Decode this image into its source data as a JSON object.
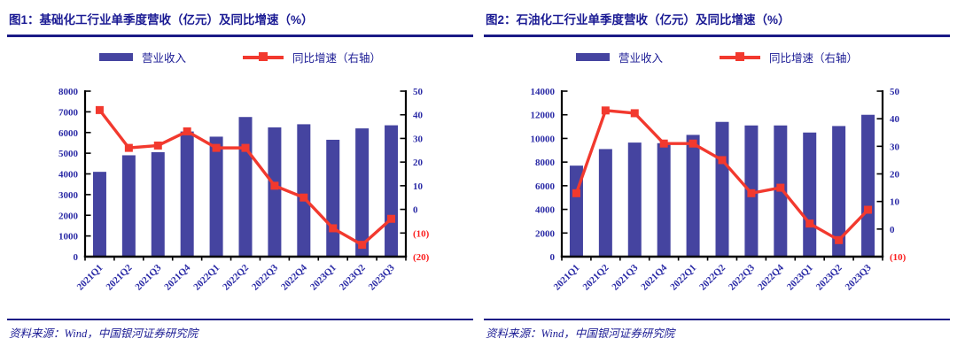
{
  "page": {
    "background": "#ffffff"
  },
  "colors": {
    "bar": "#4544A0",
    "line": "#F2392E",
    "title_navy": "#1B1B94",
    "axis_navy": "#2B2BA6",
    "negative_red": "#FB1E1E",
    "rule_navy": "#1A1A86",
    "axis_black": "#000000"
  },
  "chart_data": [
    {
      "type": "bar",
      "subtype": "bar+line combo, line on right axis",
      "title": "图1：基础化工行业单季度营收（亿元）及同比增速（%）",
      "source": "资料来源：Wind，中国银河证券研究院",
      "grid": false,
      "legend_position": "top",
      "categories": [
        "2021Q1",
        "2021Q2",
        "2021Q3",
        "2021Q4",
        "2022Q1",
        "2022Q2",
        "2022Q3",
        "2022Q4",
        "2023Q1",
        "2023Q2",
        "2023Q3"
      ],
      "series": [
        {
          "name": "营业收入",
          "type": "bar",
          "axis": "left",
          "values": [
            4100,
            4900,
            5050,
            6050,
            5800,
            6750,
            6250,
            6400,
            5650,
            6200,
            6350
          ]
        },
        {
          "name": "同比增速（右轴）",
          "type": "line",
          "axis": "right",
          "values": [
            42,
            26,
            27,
            33,
            26,
            26,
            10,
            5,
            -8,
            -15,
            -4
          ]
        }
      ],
      "left_axis": {
        "min": 0,
        "max": 8000,
        "tick_values": [
          0,
          1000,
          2000,
          3000,
          4000,
          5000,
          6000,
          7000,
          8000
        ],
        "tick_labels": [
          "0",
          "1000",
          "2000",
          "3000",
          "4000",
          "5000",
          "6000",
          "7000",
          "8000"
        ]
      },
      "right_axis": {
        "min": -20,
        "max": 50,
        "tick_values": [
          -20,
          -10,
          0,
          10,
          20,
          30,
          40,
          50
        ],
        "tick_labels": [
          "(20)",
          "(10)",
          "0",
          "10",
          "20",
          "30",
          "40",
          "50"
        ]
      }
    },
    {
      "type": "bar",
      "subtype": "bar+line combo, line on right axis",
      "title": "图2：石油化工行业单季度营收（亿元）及同比增速（%）",
      "source": "资料来源：Wind，中国银河证券研究院",
      "grid": false,
      "legend_position": "top",
      "categories": [
        "2021Q1",
        "2021Q2",
        "2021Q3",
        "2021Q4",
        "2022Q1",
        "2022Q2",
        "2022Q3",
        "2022Q4",
        "2023Q1",
        "2023Q2",
        "2023Q3"
      ],
      "series": [
        {
          "name": "营业收入",
          "type": "bar",
          "axis": "left",
          "values": [
            7700,
            9100,
            9650,
            9600,
            10300,
            11400,
            11100,
            11100,
            10500,
            11050,
            12000
          ]
        },
        {
          "name": "同比增速（右轴）",
          "type": "line",
          "axis": "right",
          "values": [
            13,
            43,
            42,
            31,
            31,
            25,
            13,
            15,
            2,
            -4,
            7
          ]
        }
      ],
      "left_axis": {
        "min": 0,
        "max": 14000,
        "tick_values": [
          0,
          2000,
          4000,
          6000,
          8000,
          10000,
          12000,
          14000
        ],
        "tick_labels": [
          "0",
          "2000",
          "4000",
          "6000",
          "8000",
          "10000",
          "12000",
          "14000"
        ]
      },
      "right_axis": {
        "min": -10,
        "max": 50,
        "tick_values": [
          -10,
          0,
          10,
          20,
          30,
          40,
          50
        ],
        "tick_labels": [
          "(10)",
          "0",
          "10",
          "20",
          "30",
          "40",
          "50"
        ]
      }
    }
  ]
}
